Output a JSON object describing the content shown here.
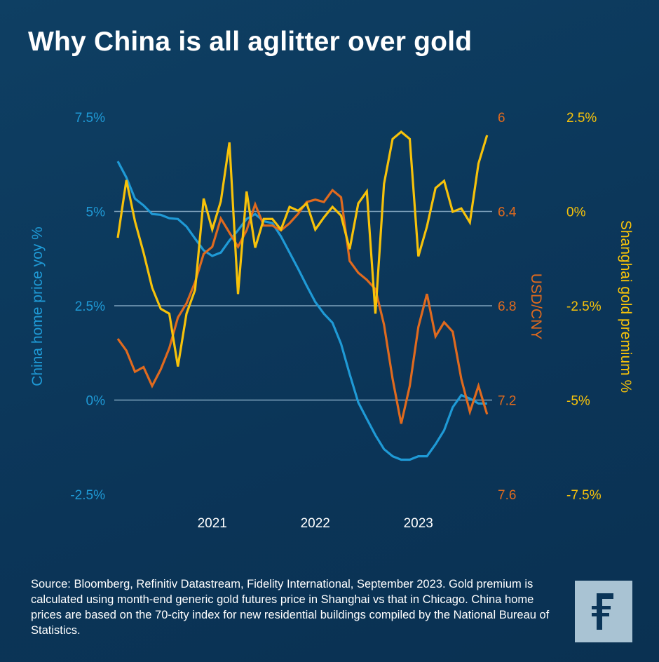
{
  "title": "Why China is all aglitter over gold",
  "source": "Source: Bloomberg, Refinitiv Datastream, Fidelity International, September 2023. Gold premium is calculated using month-end generic gold futures price in Shanghai vs that in Chicago. China home prices are based on the 70-city index for new residential buildings compiled by the National Bureau of Statistics.",
  "logo": "F",
  "colors": {
    "blue": "#1f9ad6",
    "orange": "#e06a1e",
    "yellow": "#f7c20a",
    "background": "#0c3a5d"
  },
  "chart_data": {
    "type": "line",
    "title": "Why China is all aglitter over gold",
    "x_start": "2020-02",
    "x_end": "2023-09",
    "frequency": "monthly",
    "xticks": [
      "2021",
      "2022",
      "2023"
    ],
    "axes": {
      "left": {
        "label": "China home price yoy %",
        "range": [
          -2.5,
          7.5
        ],
        "ticks": [
          "7.5%",
          "5%",
          "2.5%",
          "0%",
          "-2.5%"
        ]
      },
      "right1": {
        "label": "USD/CNY",
        "range": [
          6,
          7.6
        ],
        "inverted": true,
        "ticks": [
          "6",
          "6.4",
          "6.8",
          "7.2",
          "7.6"
        ]
      },
      "right2": {
        "label": "Shanghai gold premium %",
        "range": [
          -7.5,
          2.5
        ],
        "ticks": [
          "2.5%",
          "0%",
          "-2.5%",
          "-5%",
          "-7.5%"
        ]
      }
    },
    "grid": true,
    "series": [
      {
        "name": "China home price yoy %",
        "axis": "left",
        "color": "#1f9ad6",
        "values": [
          6.33,
          5.9,
          5.34,
          5.16,
          4.93,
          4.91,
          4.82,
          4.8,
          4.6,
          4.28,
          3.97,
          3.82,
          3.91,
          4.23,
          4.5,
          4.8,
          4.93,
          4.74,
          4.69,
          4.34,
          3.91,
          3.48,
          3.03,
          2.6,
          2.29,
          2.05,
          1.49,
          0.69,
          -0.06,
          -0.5,
          -0.93,
          -1.3,
          -1.49,
          -1.58,
          -1.58,
          -1.49,
          -1.49,
          -1.17,
          -0.8,
          -0.19,
          0.13,
          0.04,
          -0.09,
          -0.09
        ]
      },
      {
        "name": "USD/CNY",
        "axis": "right1",
        "color": "#e06a1e",
        "values": [
          6.94,
          6.99,
          7.08,
          7.06,
          7.14,
          7.07,
          6.98,
          6.85,
          6.79,
          6.7,
          6.58,
          6.55,
          6.43,
          6.49,
          6.55,
          6.48,
          6.37,
          6.46,
          6.46,
          6.48,
          6.45,
          6.41,
          6.36,
          6.35,
          6.36,
          6.31,
          6.34,
          6.61,
          6.66,
          6.69,
          6.73,
          6.88,
          7.11,
          7.3,
          7.14,
          6.89,
          6.75,
          6.93,
          6.87,
          6.91,
          7.11,
          7.25,
          7.14,
          7.26
        ]
      },
      {
        "name": "Shanghai gold premium %",
        "axis": "right2",
        "color": "#f7c20a",
        "values": [
          -0.7,
          0.83,
          -0.26,
          -1.09,
          -2.02,
          -2.58,
          -2.71,
          -4.11,
          -2.71,
          -2.08,
          0.34,
          -0.48,
          0.27,
          1.83,
          -2.19,
          0.53,
          -0.96,
          -0.2,
          -0.2,
          -0.48,
          0.12,
          0.02,
          0.21,
          -0.48,
          -0.16,
          0.12,
          -0.11,
          -1.0,
          0.21,
          0.53,
          -2.71,
          0.73,
          1.92,
          2.11,
          1.92,
          -1.19,
          -0.4,
          0.62,
          0.81,
          -0.01,
          0.08,
          -0.29,
          1.27,
          2.02
        ]
      }
    ]
  }
}
